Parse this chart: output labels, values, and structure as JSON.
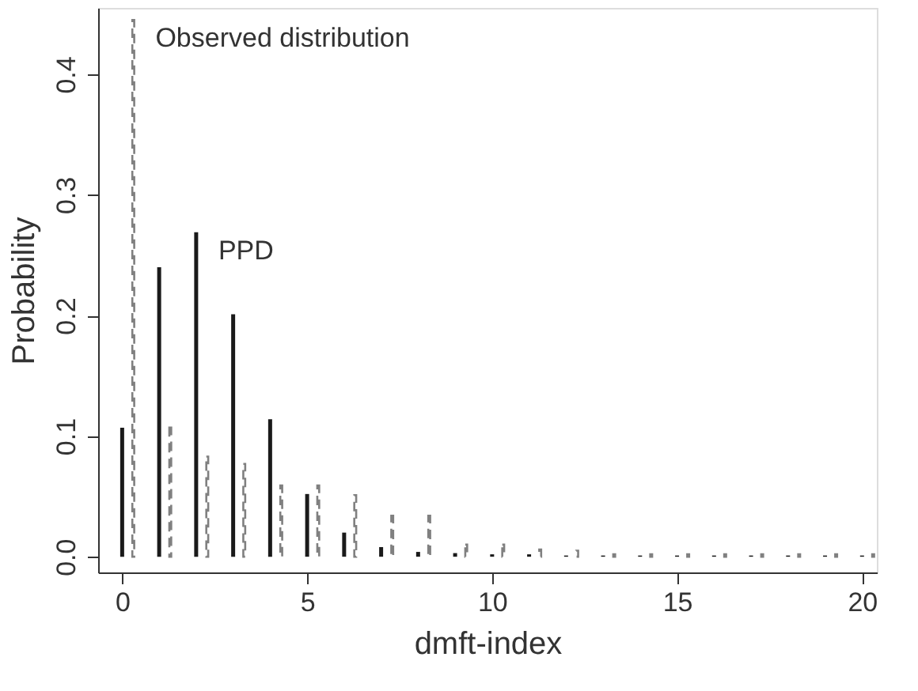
{
  "chart_data": {
    "type": "bar",
    "xlabel": "dmft-index",
    "ylabel": "Probability",
    "xlim": [
      -0.65,
      20.4
    ],
    "xticks": [
      0,
      5,
      10,
      15,
      20
    ],
    "ylim": [
      -0.013,
      0.455
    ],
    "yticks": [
      {
        "value": 0,
        "label": "0.0"
      },
      {
        "value": 0.1,
        "label": "0.1"
      },
      {
        "value": 0.2,
        "label": "0.2"
      },
      {
        "value": 0.3,
        "label": "0.3"
      },
      {
        "value": 0.4,
        "label": "0.4"
      }
    ],
    "grid": false,
    "series": [
      {
        "name": "PPD",
        "color": "#1a1a1a",
        "line_style": "solid",
        "x": [
          0,
          1,
          2,
          3,
          4,
          5,
          6,
          7,
          8,
          9,
          10,
          11,
          12,
          13,
          14,
          15,
          16,
          17,
          18,
          19,
          20
        ],
        "values": [
          0.107,
          0.24,
          0.269,
          0.201,
          0.114,
          0.052,
          0.02,
          0.008,
          0.004,
          0.003,
          0.002,
          0.002,
          0.001,
          0.001,
          0.001,
          0.001,
          0.001,
          0.001,
          0.001,
          0.001,
          0.001
        ]
      },
      {
        "name": "Observed distribution",
        "color": "#808080",
        "line_style": "dashed",
        "x": [
          0.3,
          1.3,
          2.3,
          3.3,
          4.3,
          5.3,
          6.3,
          7.3,
          8.3,
          9.3,
          10.3,
          11.3,
          12.3,
          13.3,
          14.3,
          15.3,
          16.3,
          17.3,
          18.3,
          19.3,
          20.3
        ],
        "values": [
          0.445,
          0.107,
          0.083,
          0.077,
          0.059,
          0.059,
          0.051,
          0.034,
          0.034,
          0.01,
          0.01,
          0.006,
          0.005,
          0.002,
          0.002,
          0.002,
          0.002,
          0.002,
          0.002,
          0.002,
          0.002
        ]
      }
    ]
  }
}
